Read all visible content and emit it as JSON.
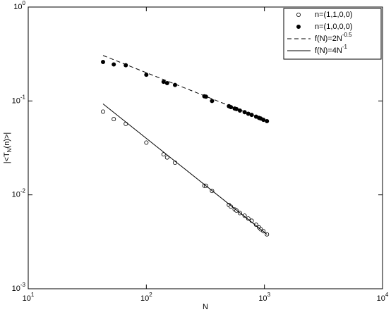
{
  "chart_data": {
    "type": "scatter",
    "x_label": "N",
    "y_label": "|<T_N(n)>|",
    "log_x": true,
    "log_y": true,
    "xlim": [
      10,
      10000
    ],
    "ylim": [
      0.001,
      1
    ],
    "xticks": [
      {
        "value": 10,
        "label": "10^1"
      },
      {
        "value": 100,
        "label": "10^2"
      },
      {
        "value": 1000,
        "label": "10^3"
      },
      {
        "value": 10000,
        "label": "10^4"
      }
    ],
    "yticks": [
      {
        "value": 0.001,
        "label": "10^-3"
      },
      {
        "value": 0.01,
        "label": "10^-2"
      },
      {
        "value": 0.1,
        "label": "10^-1"
      },
      {
        "value": 1,
        "label": "10^0"
      }
    ],
    "legend": "upper right",
    "series": [
      {
        "name": "n=(1,1,0,0)",
        "color": "#000000",
        "marker": "open",
        "x": [
          43,
          53,
          67,
          100,
          140,
          150,
          175,
          310,
          320,
          360,
          500,
          520,
          560,
          580,
          620,
          680,
          730,
          780,
          850,
          900,
          930,
          980,
          1050
        ],
        "values": [
          0.077,
          0.064,
          0.057,
          0.036,
          0.027,
          0.025,
          0.022,
          0.0125,
          0.0125,
          0.011,
          0.0078,
          0.0075,
          0.007,
          0.0068,
          0.0064,
          0.006,
          0.0056,
          0.0053,
          0.0048,
          0.0045,
          0.0043,
          0.0041,
          0.0038
        ]
      },
      {
        "name": "n=(1,0,0,0)",
        "color": "#000000",
        "marker": "filled",
        "x": [
          43,
          53,
          67,
          100,
          140,
          150,
          175,
          310,
          320,
          360,
          500,
          520,
          560,
          580,
          620,
          680,
          730,
          780,
          850,
          900,
          930,
          980,
          1050
        ],
        "values": [
          0.26,
          0.245,
          0.24,
          0.19,
          0.16,
          0.155,
          0.148,
          0.112,
          0.111,
          0.1,
          0.088,
          0.086,
          0.083,
          0.082,
          0.079,
          0.076,
          0.073,
          0.071,
          0.068,
          0.066,
          0.065,
          0.063,
          0.061
        ]
      },
      {
        "name": "f(N)=2N^-0.5",
        "color": "#000000",
        "line": "dashed",
        "x": [
          43,
          1050
        ],
        "values": [
          0.305,
          0.0617
        ]
      },
      {
        "name": "f(N)=4N^-1",
        "color": "#000000",
        "line": "solid",
        "x": [
          43,
          1050
        ],
        "values": [
          0.093,
          0.0038
        ]
      }
    ]
  }
}
